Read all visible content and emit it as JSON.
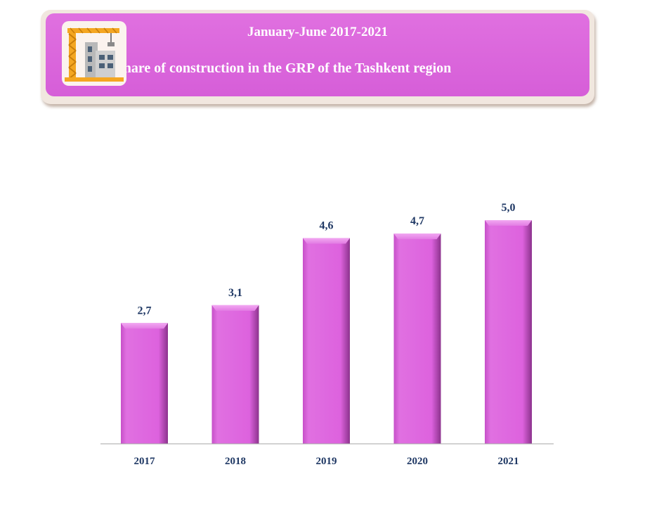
{
  "banner": {
    "line1": "January-June 2017-2021",
    "line2": "share of construction in the GRP of the Tashkent region"
  },
  "icon": "construction-crane-building-icon",
  "colors": {
    "banner": "#d864d9",
    "bar_light": "#e88ae9",
    "bar_main": "#de5fdf",
    "bar_dark": "#7a2a7b",
    "label": "#1f3864",
    "axis": "#a6a6a6"
  },
  "chart_data": {
    "type": "bar",
    "categories": [
      "2017",
      "2018",
      "2019",
      "2020",
      "2021"
    ],
    "values": [
      2.7,
      3.1,
      4.6,
      4.7,
      5.0
    ],
    "value_labels": [
      "2,7",
      "3,1",
      "4,6",
      "4,7",
      "5,0"
    ],
    "ylim": [
      0,
      5.4
    ],
    "grid": false,
    "legend": "none"
  }
}
